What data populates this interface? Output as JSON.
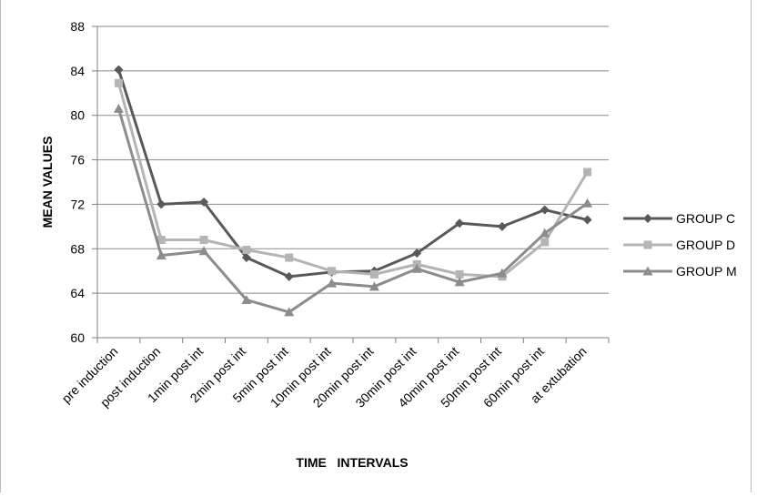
{
  "chart_data": {
    "type": "line",
    "title": "",
    "xlabel": "TIME   INTERVALS",
    "ylabel": "MEAN VALUES",
    "ylim": [
      60,
      88
    ],
    "yticks": [
      60,
      64,
      68,
      72,
      76,
      80,
      84,
      88
    ],
    "grid": true,
    "legend_position": "right",
    "categories": [
      "pre induction",
      "post induction",
      "1min post int",
      "2min post int",
      "5min post int",
      "10min post int",
      "20min post int",
      "30min post int",
      "40min post int",
      "50min post int",
      "60min post int",
      "at extubation"
    ],
    "series": [
      {
        "name": "GROUP C",
        "marker": "diamond",
        "color": "#595959",
        "values": [
          84.1,
          72.0,
          72.2,
          67.2,
          65.5,
          65.9,
          66.0,
          67.6,
          70.3,
          70.0,
          71.5,
          70.6
        ]
      },
      {
        "name": "GROUP D",
        "marker": "square",
        "color": "#b4b4b4",
        "values": [
          82.9,
          68.8,
          68.8,
          67.9,
          67.2,
          66.0,
          65.7,
          66.6,
          65.7,
          65.5,
          68.6,
          74.9
        ]
      },
      {
        "name": "GROUP M",
        "marker": "triangle",
        "color": "#8c8c8c",
        "values": [
          80.6,
          67.4,
          67.8,
          63.4,
          62.3,
          64.9,
          64.6,
          66.2,
          65.0,
          65.8,
          69.4,
          72.1
        ]
      }
    ]
  }
}
